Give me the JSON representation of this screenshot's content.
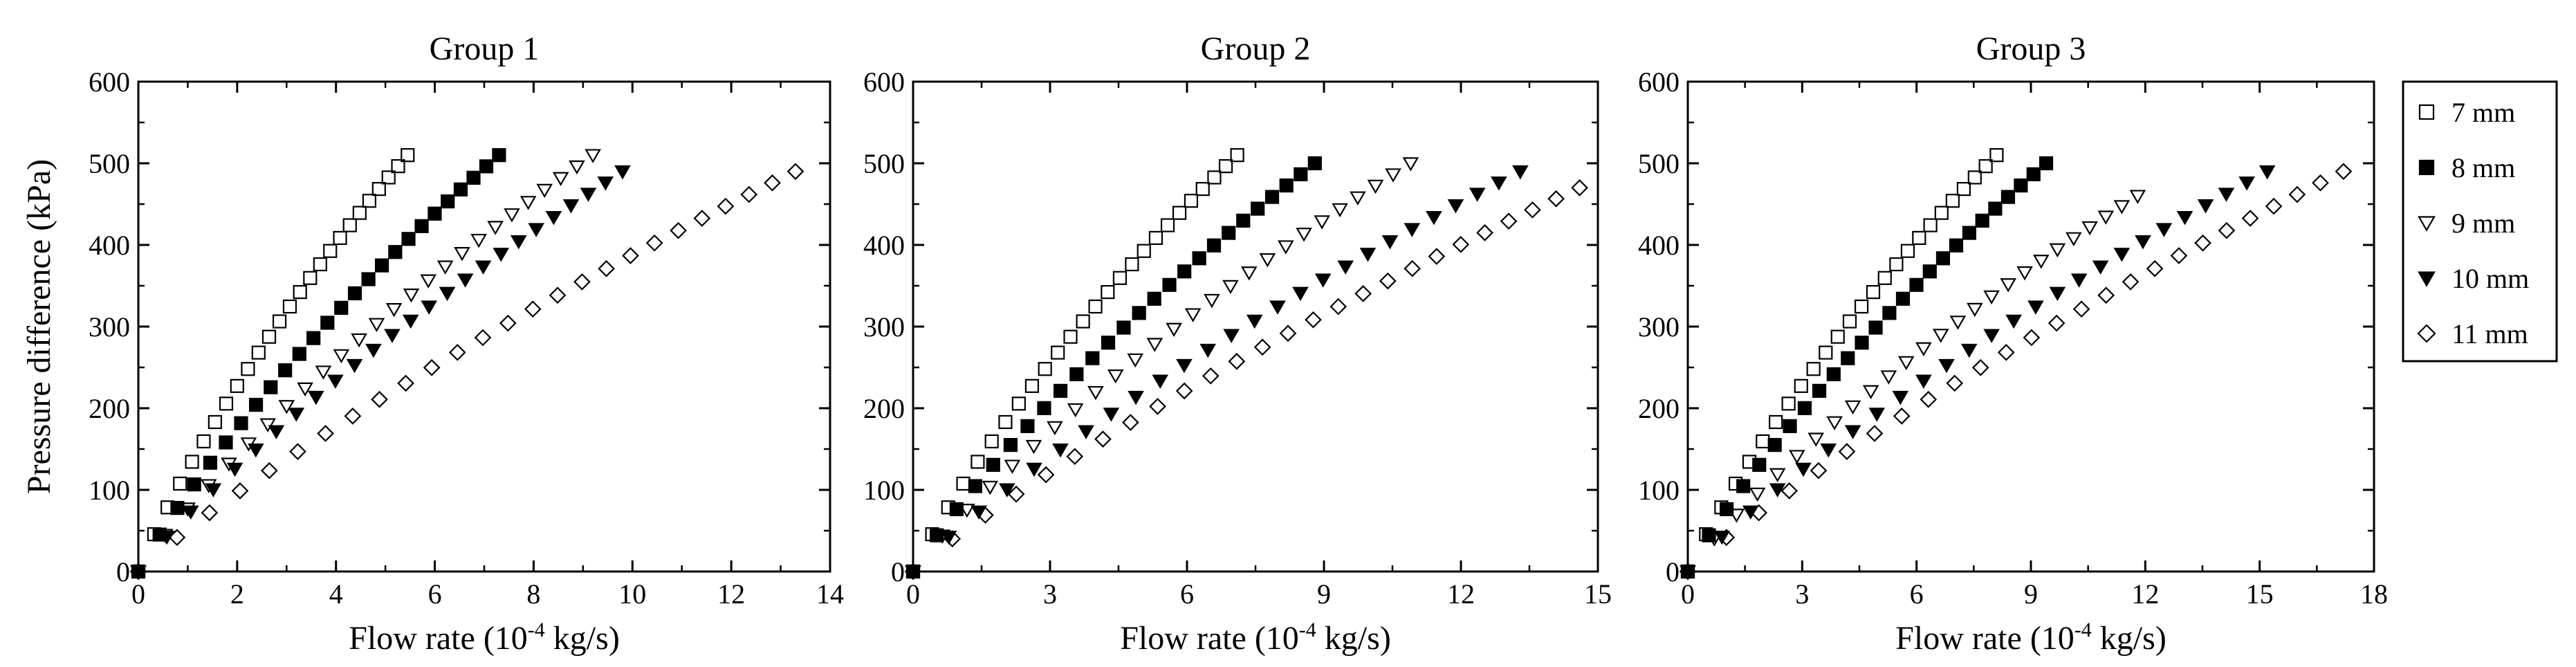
{
  "chart_data": [
    {
      "type": "scatter",
      "title": "Group 1",
      "xlabel": "Flow rate (10",
      "xlabel_sup": "-4",
      "xlabel_tail": " kg/s)",
      "ylabel": "Pressure difference (kPa)",
      "xlim": [
        0,
        14
      ],
      "ylim": [
        0,
        600
      ],
      "xticks": [
        0,
        2,
        4,
        6,
        8,
        10,
        12,
        14
      ],
      "yticks": [
        0,
        100,
        200,
        300,
        400,
        500,
        600
      ],
      "series": [
        {
          "name": "7 mm",
          "max_x": 5.45,
          "max_y": 510,
          "k": 1.3
        },
        {
          "name": "8 mm",
          "max_x": 7.3,
          "max_y": 510,
          "k": 1.2
        },
        {
          "name": "9 mm",
          "max_x": 9.2,
          "max_y": 510,
          "k": 1.1
        },
        {
          "name": "10 mm",
          "max_x": 9.8,
          "max_y": 490,
          "k": 1.0
        },
        {
          "name": "11 mm",
          "max_x": 13.3,
          "max_y": 490,
          "k": 0.8
        }
      ]
    },
    {
      "type": "scatter",
      "title": "Group 2",
      "xlabel": "Flow rate (10",
      "xlabel_sup": "-4",
      "xlabel_tail": " kg/s)",
      "ylabel": "",
      "xlim": [
        0,
        15
      ],
      "ylim": [
        0,
        600
      ],
      "xticks": [
        0,
        3,
        6,
        9,
        12,
        15
      ],
      "yticks": [
        0,
        100,
        200,
        300,
        400,
        500,
        600
      ],
      "series": [
        {
          "name": "7 mm",
          "max_x": 7.1,
          "max_y": 510,
          "k": 1.3
        },
        {
          "name": "8 mm",
          "max_x": 8.8,
          "max_y": 500,
          "k": 1.2
        },
        {
          "name": "9 mm",
          "max_x": 10.9,
          "max_y": 500,
          "k": 1.1
        },
        {
          "name": "10 mm",
          "max_x": 13.3,
          "max_y": 490,
          "k": 1.0
        },
        {
          "name": "11 mm",
          "max_x": 14.6,
          "max_y": 470,
          "k": 0.8
        }
      ]
    },
    {
      "type": "scatter",
      "title": "Group 3",
      "xlabel": "Flow rate (10",
      "xlabel_sup": "-4",
      "xlabel_tail": " kg/s)",
      "ylabel": "",
      "xlim": [
        0,
        18
      ],
      "ylim": [
        0,
        600
      ],
      "xticks": [
        0,
        3,
        6,
        9,
        12,
        15,
        18
      ],
      "yticks": [
        0,
        100,
        200,
        300,
        400,
        500,
        600
      ],
      "series": [
        {
          "name": "7 mm",
          "max_x": 8.1,
          "max_y": 510,
          "k": 1.3
        },
        {
          "name": "8 mm",
          "max_x": 9.4,
          "max_y": 500,
          "k": 1.2
        },
        {
          "name": "9 mm",
          "max_x": 11.8,
          "max_y": 460,
          "k": 1.1
        },
        {
          "name": "10 mm",
          "max_x": 15.2,
          "max_y": 490,
          "k": 1.0
        },
        {
          "name": "11 mm",
          "max_x": 17.2,
          "max_y": 490,
          "k": 0.8
        }
      ]
    }
  ],
  "legend": {
    "placement": "right",
    "entries": [
      {
        "label": "7 mm",
        "marker": "square-open"
      },
      {
        "label": "8 mm",
        "marker": "square-filled"
      },
      {
        "label": "9 mm",
        "marker": "triangle-down-open"
      },
      {
        "label": "10 mm",
        "marker": "triangle-down-filled"
      },
      {
        "label": "11 mm",
        "marker": "diamond-open"
      }
    ]
  },
  "colors": {
    "ink": "#000000",
    "background": "#ffffff"
  }
}
